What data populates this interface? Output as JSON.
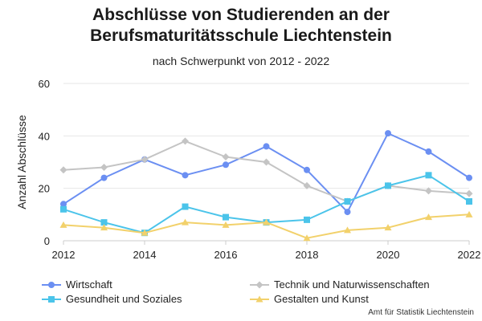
{
  "title_line1": "Abschlüsse von Studierenden an der",
  "title_line2": "Berufsmaturitätsschule Liechtenstein",
  "subtitle": "nach Schwerpunkt von 2012 - 2022",
  "source": "Amt für Statistik Liechtenstein",
  "chart_data": {
    "type": "line",
    "title": "Abschlüsse von Studierenden an der Berufsmaturitätsschule Liechtenstein",
    "subtitle": "nach Schwerpunkt von 2012 - 2022",
    "xlabel": "",
    "ylabel": "Anzahl Abschlüsse",
    "x": [
      2012,
      2013,
      2014,
      2015,
      2016,
      2017,
      2018,
      2019,
      2020,
      2021,
      2022
    ],
    "xticks": [
      2012,
      2014,
      2016,
      2018,
      2020,
      2022
    ],
    "yticks": [
      0,
      20,
      40,
      60
    ],
    "xlim": [
      2012,
      2022
    ],
    "ylim": [
      0,
      60
    ],
    "grid": "horizontal",
    "legend_position": "bottom",
    "series": [
      {
        "name": "Wirtschaft",
        "color": "#6b8ff2",
        "marker": "circle",
        "values": [
          14,
          24,
          31,
          25,
          29,
          36,
          27,
          11,
          41,
          34,
          24
        ]
      },
      {
        "name": "Technik und Naturwissenschaften",
        "color": "#c4c4c4",
        "marker": "diamond",
        "values": [
          27,
          28,
          31,
          38,
          32,
          30,
          21,
          15,
          21,
          19,
          18
        ]
      },
      {
        "name": "Gesundheit und Soziales",
        "color": "#4bc4ea",
        "marker": "square",
        "values": [
          12,
          7,
          3,
          13,
          9,
          7,
          8,
          15,
          21,
          25,
          15
        ]
      },
      {
        "name": "Gestalten und Kunst",
        "color": "#f2d16b",
        "marker": "triangle",
        "values": [
          6,
          5,
          3,
          7,
          6,
          7,
          1,
          4,
          5,
          9,
          10
        ]
      }
    ]
  }
}
